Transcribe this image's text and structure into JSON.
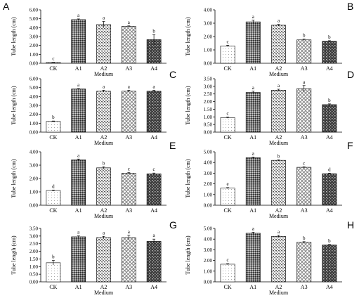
{
  "chart_data": [
    {
      "panel": "A",
      "type": "bar",
      "categories": [
        "CK",
        "A1",
        "A2",
        "A3",
        "A4"
      ],
      "values": [
        0.1,
        4.9,
        4.35,
        4.15,
        2.65
      ],
      "errors": [
        0.03,
        0.08,
        0.35,
        0.05,
        0.55
      ],
      "letters": [
        "c",
        "a",
        "a",
        "a",
        "b"
      ],
      "xlabel": "Medium",
      "ylabel": "Tube length (cm)",
      "ylim": [
        0,
        6
      ],
      "yticks": [
        "0.00",
        "1.00",
        "2.00",
        "3.00",
        "4.00",
        "5.00",
        "6.00"
      ]
    },
    {
      "panel": "B",
      "type": "bar",
      "categories": [
        "CK",
        "A1",
        "A2",
        "A3",
        "A4"
      ],
      "values": [
        1.3,
        3.1,
        2.85,
        1.75,
        1.65
      ],
      "errors": [
        0.05,
        0.12,
        0.06,
        0.06,
        0.04
      ],
      "letters": [
        "c",
        "a",
        "a",
        "b",
        "b"
      ],
      "xlabel": "Medium",
      "ylabel": "Tube length (cm)",
      "ylim": [
        0,
        4
      ],
      "yticks": [
        "0.00",
        "1.00",
        "2.00",
        "3.00",
        "4.00"
      ]
    },
    {
      "panel": "C",
      "type": "bar",
      "categories": [
        "CK",
        "A1",
        "A2",
        "A3",
        "A4"
      ],
      "values": [
        1.2,
        4.85,
        4.6,
        4.6,
        4.6
      ],
      "errors": [
        0.05,
        0.05,
        0.1,
        0.1,
        0.1
      ],
      "letters": [
        "b",
        "a",
        "a",
        "a",
        "a"
      ],
      "xlabel": "Medium",
      "ylabel": "Tube length (cm)",
      "ylim": [
        0,
        6
      ],
      "yticks": [
        "0.00",
        "1.00",
        "2.00",
        "3.00",
        "4.00",
        "5.00",
        "6.00"
      ]
    },
    {
      "panel": "D",
      "type": "bar",
      "categories": [
        "CK",
        "A1",
        "A2",
        "A3",
        "A4"
      ],
      "values": [
        0.95,
        2.6,
        2.75,
        2.85,
        1.8
      ],
      "errors": [
        0.04,
        0.08,
        0.06,
        0.2,
        0.05
      ],
      "letters": [
        "c",
        "a",
        "a",
        "a",
        "b"
      ],
      "xlabel": "Medium",
      "ylabel": "Tube length (cm)",
      "ylim": [
        0,
        3.5
      ],
      "yticks": [
        "0.00",
        "0.50",
        "1.00",
        "1.50",
        "2.00",
        "2.50",
        "3.00",
        "3.50"
      ]
    },
    {
      "panel": "E",
      "type": "bar",
      "categories": [
        "CK",
        "A1",
        "A2",
        "A3",
        "A4"
      ],
      "values": [
        1.1,
        3.4,
        2.8,
        2.4,
        2.35
      ],
      "errors": [
        0.04,
        0.06,
        0.08,
        0.06,
        0.06
      ],
      "letters": [
        "d",
        "a",
        "b",
        "c",
        "c"
      ],
      "xlabel": "Medium",
      "ylabel": "Tube length (cm)",
      "ylim": [
        0,
        4
      ],
      "yticks": [
        "0.00",
        "1.00",
        "2.00",
        "3.00",
        "4.00"
      ]
    },
    {
      "panel": "F",
      "type": "bar",
      "categories": [
        "CK",
        "A1",
        "A2",
        "A3",
        "A4"
      ],
      "values": [
        1.6,
        4.45,
        4.2,
        3.55,
        2.95
      ],
      "errors": [
        0.05,
        0.06,
        0.05,
        0.05,
        0.05
      ],
      "letters": [
        "e",
        "a",
        "b",
        "c",
        "d"
      ],
      "xlabel": "Medium",
      "ylabel": "Tube length (cm)",
      "ylim": [
        0,
        5
      ],
      "yticks": [
        "0.00",
        "1.00",
        "2.00",
        "3.00",
        "4.00",
        "5.00"
      ]
    },
    {
      "panel": "G",
      "type": "bar",
      "categories": [
        "CK",
        "A1",
        "A2",
        "A3",
        "A4"
      ],
      "values": [
        1.25,
        2.95,
        2.9,
        2.9,
        2.65
      ],
      "errors": [
        0.15,
        0.06,
        0.08,
        0.15,
        0.15
      ],
      "letters": [
        "b",
        "a",
        "a",
        "a",
        "a"
      ],
      "xlabel": "Medium",
      "ylabel": "Tube length (cm)",
      "ylim": [
        0,
        3.5
      ],
      "yticks": [
        "0.00",
        "0.50",
        "1.00",
        "1.50",
        "2.00",
        "2.50",
        "3.00",
        "3.50"
      ]
    },
    {
      "panel": "H",
      "type": "bar",
      "categories": [
        "CK",
        "A1",
        "A2",
        "A3",
        "A4"
      ],
      "values": [
        1.65,
        4.55,
        4.25,
        3.7,
        3.45
      ],
      "errors": [
        0.05,
        0.1,
        0.1,
        0.06,
        0.05
      ],
      "letters": [
        "c",
        "a",
        "a",
        "b",
        "b"
      ],
      "xlabel": "Medium",
      "ylabel": "Tube length (cm)",
      "ylim": [
        0,
        5
      ],
      "yticks": [
        "0.00",
        "1.00",
        "2.00",
        "3.00",
        "4.00",
        "5.00"
      ]
    }
  ]
}
